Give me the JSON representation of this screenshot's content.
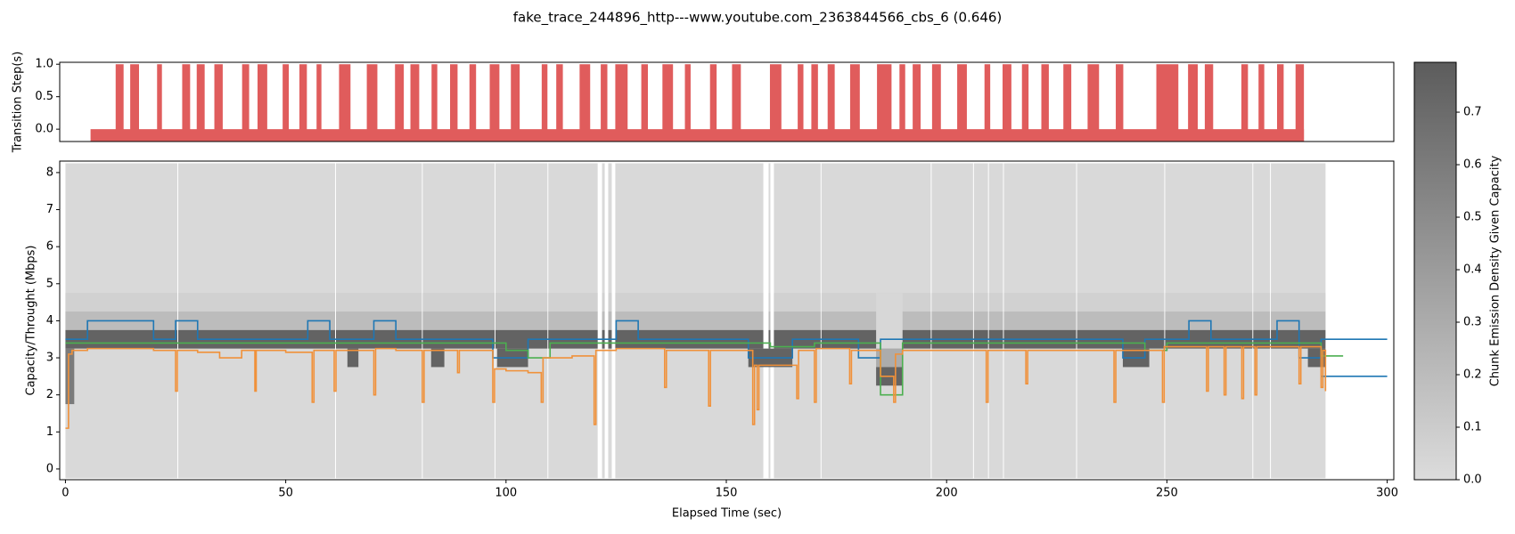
{
  "title": "fake_trace_244896_http---www.youtube.com_2363844566_cbs_6 (0.646)",
  "chart_data": [
    {
      "type": "interval",
      "ylabel": "Transition Step(s)",
      "xlim": [
        -1.3,
        301.5
      ],
      "ylim": [
        -0.19,
        1.03
      ],
      "yticks": [
        {
          "value": 0,
          "label": "0.0"
        },
        {
          "value": 0.5,
          "label": "0.5"
        },
        {
          "value": 1,
          "label": "1.0"
        }
      ],
      "color": "#e05c5c",
      "height": 1,
      "band": {
        "start": 5.7,
        "end": 281.1,
        "bottom": -0.2,
        "top": 0
      },
      "intervals": {
        "start": [
          11.4,
          14.7,
          20.8,
          26.5,
          29.8,
          33.8,
          40.1,
          43.6,
          49.3,
          53.1,
          57.0,
          62.1,
          68.4,
          74.8,
          78.3,
          83.1,
          87.3,
          91.7,
          96.3,
          101.1,
          108.1,
          111.4,
          116.7,
          121.5,
          124.8,
          130.7,
          135.5,
          140.6,
          146.3,
          151.3,
          159.9,
          166.2,
          169.3,
          173.0,
          178.1,
          184.2,
          189.3,
          192.3,
          196.7,
          202.4,
          208.6,
          212.7,
          217.1,
          221.5,
          226.5,
          232.0,
          238.4,
          247.6,
          254.8,
          258.6,
          266.9,
          270.8,
          275.0,
          279.2
        ],
        "end": [
          13.2,
          16.7,
          21.9,
          28.3,
          31.6,
          35.7,
          41.7,
          45.8,
          50.7,
          54.8,
          58.1,
          64.7,
          70.8,
          76.8,
          80.3,
          84.4,
          89.0,
          93.2,
          98.5,
          103.1,
          109.4,
          112.9,
          119.1,
          123.0,
          127.6,
          132.2,
          137.9,
          141.9,
          147.8,
          153.3,
          162.5,
          167.5,
          170.8,
          174.6,
          180.3,
          187.5,
          190.6,
          194.1,
          198.7,
          204.6,
          209.9,
          214.7,
          218.6,
          223.2,
          228.3,
          234.6,
          240.1,
          252.6,
          257.0,
          260.5,
          268.4,
          272.1,
          276.5,
          281.1
        ]
      }
    },
    {
      "type": "density-steps",
      "xlabel": "Elapsed Time (sec)",
      "ylabel": "Capacity/Throught (Mbps)",
      "xlim": [
        -1.3,
        301.5
      ],
      "ylim": [
        -0.29,
        8.31
      ],
      "xticks": [
        0,
        50,
        100,
        150,
        200,
        250,
        300
      ],
      "yticks": [
        0,
        1,
        2,
        3,
        4,
        5,
        6,
        7,
        8
      ],
      "density": {
        "yrange": [
          -0.25,
          8.25
        ],
        "background": 0.02,
        "segments": [
          [
            0,
            25.4
          ],
          [
            25.6,
            61.2
          ],
          [
            61.4,
            80.9
          ],
          [
            81.1,
            97.4
          ],
          [
            97.6,
            109.4
          ],
          [
            109.6,
            120.8
          ],
          [
            121.8,
            122.4
          ],
          [
            123.2,
            124
          ],
          [
            124.8,
            158.4
          ],
          [
            159.6,
            160
          ],
          [
            160.8,
            171.4
          ],
          [
            171.6,
            196.4
          ],
          [
            196.6,
            206
          ],
          [
            206.2,
            209.4
          ],
          [
            209.6,
            212.8
          ],
          [
            213,
            229.4
          ],
          [
            229.6,
            249.4
          ],
          [
            249.6,
            269.4
          ],
          [
            269.6,
            273.4
          ],
          [
            273.6,
            286
          ]
        ],
        "bands": [
          {
            "y": [
              4.25,
              4.75
            ],
            "value": 0.07
          },
          {
            "y": [
              3.75,
              4.25
            ],
            "value": 0.2
          },
          {
            "y": [
              3.25,
              3.75
            ],
            "value": 0.75
          }
        ],
        "cells": [
          {
            "x": [
              0,
              2
            ],
            "y": [
              1.75,
              3.25
            ],
            "value": 0.6
          },
          {
            "x": [
              64,
              66.5
            ],
            "y": [
              2.75,
              3.25
            ],
            "value": 0.75
          },
          {
            "x": [
              83,
              86
            ],
            "y": [
              2.75,
              3.25
            ],
            "value": 0.75
          },
          {
            "x": [
              98,
              105
            ],
            "y": [
              2.75,
              3.25
            ],
            "value": 0.75
          },
          {
            "x": [
              155,
              165
            ],
            "y": [
              2.75,
              3.25
            ],
            "value": 0.75
          },
          {
            "x": [
              184,
              190
            ],
            "y": [
              3.25,
              4.75
            ],
            "value": 0.03
          },
          {
            "x": [
              184,
              190
            ],
            "y": [
              2.75,
              3.25
            ],
            "value": 0.3
          },
          {
            "x": [
              184,
              190
            ],
            "y": [
              2.25,
              2.75
            ],
            "value": 0.75
          },
          {
            "x": [
              240,
              246
            ],
            "y": [
              2.75,
              3.25
            ],
            "value": 0.75
          },
          {
            "x": [
              282,
              286
            ],
            "y": [
              2.75,
              3.25
            ],
            "value": 0.75
          }
        ]
      },
      "series": [
        {
          "color": "#1f77b4",
          "x": [
            0,
            5,
            20,
            25,
            30,
            55,
            60,
            70,
            75,
            97,
            105,
            125,
            130,
            155,
            165,
            180,
            185,
            240,
            245,
            255,
            260,
            275,
            280,
            285,
            300
          ],
          "values": [
            3.5,
            4.0,
            3.5,
            4.0,
            3.5,
            4.0,
            3.5,
            4.0,
            3.5,
            3.0,
            3.5,
            4.0,
            3.5,
            3.0,
            3.5,
            3.0,
            3.5,
            3.0,
            3.5,
            4.0,
            3.5,
            4.0,
            3.0,
            3.5,
            3.5
          ]
        },
        {
          "color": "#1f77b4",
          "x": [
            285,
            300
          ],
          "values": [
            2.5,
            2.5
          ]
        },
        {
          "color": "#4caf50",
          "x": [
            0,
            100,
            105,
            110,
            160,
            170,
            185,
            190,
            245,
            250,
            285,
            290
          ],
          "values": [
            3.4,
            3.2,
            3.0,
            3.4,
            3.3,
            3.4,
            2.0,
            3.4,
            3.2,
            3.4,
            3.05,
            3.05
          ]
        },
        {
          "color": "#f0913a",
          "x": [
            0,
            0.7,
            1.5,
            5,
            20,
            25,
            25.4,
            30,
            35,
            40,
            43,
            43.3,
            50,
            56,
            56.4,
            61,
            61.4,
            70,
            70.4,
            75,
            81,
            81.4,
            89,
            89.4,
            97,
            97.4,
            100,
            105,
            108,
            108.4,
            115,
            120,
            120.4,
            125,
            136,
            136.4,
            146,
            146.4,
            156,
            156.4,
            157,
            157.4,
            166,
            166.4,
            170,
            170.4,
            178,
            178.4,
            185,
            188,
            188.4,
            190,
            200,
            209,
            209.4,
            218,
            218.4,
            238,
            238.4,
            249,
            249.4,
            259,
            259.4,
            263,
            263.4,
            267,
            267.4,
            270,
            270.4,
            280,
            280.4,
            285,
            285.4,
            286
          ],
          "values": [
            1.1,
            3.1,
            3.2,
            3.25,
            3.2,
            2.1,
            3.2,
            3.15,
            3.0,
            3.2,
            2.1,
            3.2,
            3.15,
            1.8,
            3.2,
            2.1,
            3.2,
            2.0,
            3.25,
            3.2,
            1.8,
            3.2,
            2.6,
            3.2,
            1.8,
            2.7,
            2.65,
            2.6,
            1.8,
            3.0,
            3.05,
            1.2,
            3.2,
            3.25,
            2.2,
            3.2,
            1.7,
            3.2,
            1.2,
            2.8,
            1.6,
            2.8,
            1.9,
            3.2,
            1.8,
            3.25,
            2.3,
            3.2,
            2.5,
            1.8,
            3.1,
            3.2,
            3.2,
            1.8,
            3.2,
            2.3,
            3.2,
            1.8,
            3.2,
            1.8,
            3.3,
            2.1,
            3.3,
            2.0,
            3.3,
            1.9,
            3.3,
            2.0,
            3.3,
            2.3,
            3.3,
            2.2,
            3.2,
            2.1
          ]
        }
      ],
      "colorbar": {
        "label": "Chunk Emission Density Given Capacity",
        "lim": [
          0,
          0.795
        ],
        "colors": [
          "#dcdcdc",
          "#5c5c5c"
        ],
        "ticks": [
          {
            "value": 0,
            "label": "0.0"
          },
          0.1,
          0.2,
          0.3,
          0.4,
          0.5,
          0.6,
          0.7
        ]
      }
    }
  ]
}
